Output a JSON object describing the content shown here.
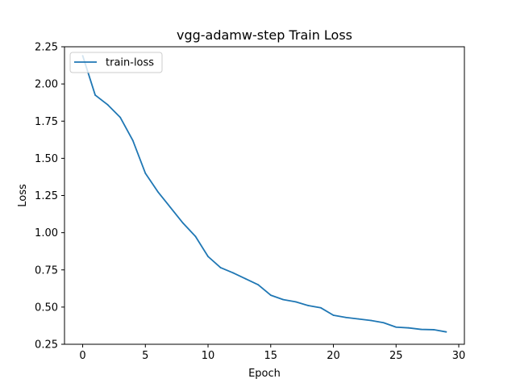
{
  "chart_data": {
    "type": "line",
    "title": "vgg-adamw-step  Train Loss",
    "xlabel": "Epoch",
    "ylabel": "Loss",
    "xlim": [
      -1.45,
      30.45
    ],
    "ylim": [
      0.25,
      2.25
    ],
    "xticks": [
      0,
      5,
      10,
      15,
      20,
      25,
      30
    ],
    "yticks": [
      0.25,
      0.5,
      0.75,
      1.0,
      1.25,
      1.5,
      1.75,
      2.0,
      2.25
    ],
    "ytick_labels": [
      "0.25",
      "0.50",
      "0.75",
      "1.00",
      "1.25",
      "1.50",
      "1.75",
      "2.00",
      "2.25"
    ],
    "grid": false,
    "legend_position": "upper-left",
    "series": [
      {
        "name": "train-loss",
        "color": "#1f77b4",
        "x": [
          0,
          1,
          2,
          3,
          4,
          5,
          6,
          7,
          8,
          9,
          10,
          11,
          12,
          13,
          14,
          15,
          16,
          17,
          18,
          19,
          20,
          21,
          22,
          23,
          24,
          25,
          26,
          27,
          28,
          29
        ],
        "values": [
          2.19,
          1.925,
          1.86,
          1.775,
          1.62,
          1.4,
          1.275,
          1.17,
          1.065,
          0.975,
          0.84,
          0.765,
          0.73,
          0.69,
          0.65,
          0.58,
          0.55,
          0.535,
          0.51,
          0.495,
          0.445,
          0.43,
          0.42,
          0.41,
          0.395,
          0.365,
          0.36,
          0.35,
          0.348,
          0.333
        ]
      }
    ]
  }
}
